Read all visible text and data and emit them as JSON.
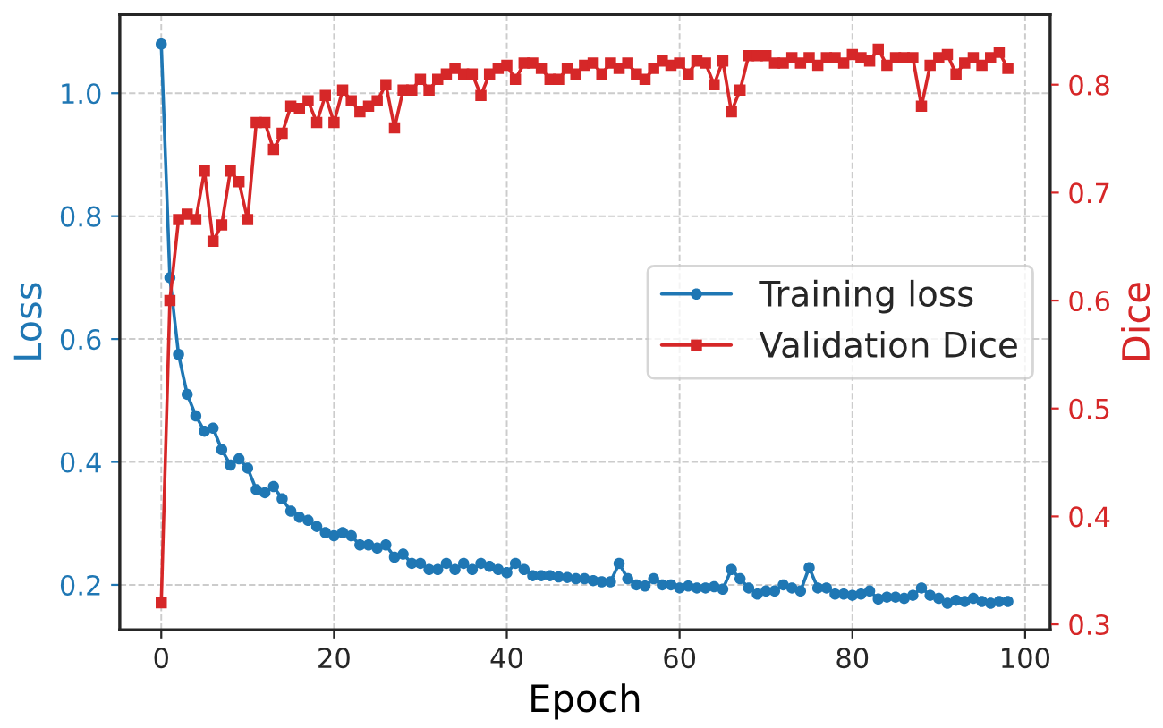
{
  "chart_data": {
    "type": "line",
    "xlabel": "Epoch",
    "ylabel": "Loss",
    "y2label": "Dice",
    "x": [
      0,
      1,
      2,
      3,
      4,
      5,
      6,
      7,
      8,
      9,
      10,
      11,
      12,
      13,
      14,
      15,
      16,
      17,
      18,
      19,
      20,
      21,
      22,
      23,
      24,
      25,
      26,
      27,
      28,
      29,
      30,
      31,
      32,
      33,
      34,
      35,
      36,
      37,
      38,
      39,
      40,
      41,
      42,
      43,
      44,
      45,
      46,
      47,
      48,
      49,
      50,
      51,
      52,
      53,
      54,
      55,
      56,
      57,
      58,
      59,
      60,
      61,
      62,
      63,
      64,
      65,
      66,
      67,
      68,
      69,
      70,
      71,
      72,
      73,
      74,
      75,
      76,
      77,
      78,
      79,
      80,
      81,
      82,
      83,
      84,
      85,
      86,
      87,
      88,
      89,
      90,
      91,
      92,
      93,
      94,
      95,
      96,
      97,
      98
    ],
    "series": [
      {
        "name": "Training loss",
        "color": "#1f77b4",
        "marker": "circle",
        "values": [
          1.08,
          0.7,
          0.575,
          0.51,
          0.475,
          0.45,
          0.455,
          0.42,
          0.395,
          0.405,
          0.39,
          0.355,
          0.35,
          0.36,
          0.34,
          0.32,
          0.31,
          0.305,
          0.295,
          0.285,
          0.28,
          0.285,
          0.28,
          0.265,
          0.265,
          0.26,
          0.265,
          0.245,
          0.25,
          0.235,
          0.235,
          0.225,
          0.225,
          0.235,
          0.225,
          0.235,
          0.225,
          0.235,
          0.23,
          0.225,
          0.22,
          0.235,
          0.225,
          0.215,
          0.215,
          0.215,
          0.213,
          0.212,
          0.21,
          0.21,
          0.207,
          0.205,
          0.205,
          0.235,
          0.21,
          0.2,
          0.198,
          0.21,
          0.2,
          0.2,
          0.195,
          0.198,
          0.195,
          0.195,
          0.197,
          0.193,
          0.225,
          0.21,
          0.195,
          0.185,
          0.19,
          0.19,
          0.2,
          0.195,
          0.19,
          0.228,
          0.195,
          0.195,
          0.185,
          0.185,
          0.183,
          0.185,
          0.19,
          0.177,
          0.18,
          0.18,
          0.178,
          0.183,
          0.195,
          0.183,
          0.178,
          0.17,
          0.175,
          0.173,
          0.178,
          0.173,
          0.17,
          0.173,
          0.173
        ]
      },
      {
        "name": "Validation Dice",
        "color": "#d62728",
        "marker": "square",
        "axis": "y2",
        "values": [
          0.32,
          0.6,
          0.675,
          0.68,
          0.675,
          0.72,
          0.655,
          0.67,
          0.72,
          0.71,
          0.675,
          0.765,
          0.765,
          0.74,
          0.755,
          0.78,
          0.778,
          0.785,
          0.765,
          0.79,
          0.765,
          0.795,
          0.785,
          0.775,
          0.78,
          0.785,
          0.8,
          0.76,
          0.795,
          0.795,
          0.805,
          0.795,
          0.805,
          0.81,
          0.815,
          0.81,
          0.81,
          0.79,
          0.81,
          0.815,
          0.818,
          0.805,
          0.82,
          0.82,
          0.815,
          0.805,
          0.805,
          0.815,
          0.81,
          0.818,
          0.82,
          0.81,
          0.82,
          0.815,
          0.82,
          0.81,
          0.805,
          0.815,
          0.822,
          0.818,
          0.82,
          0.81,
          0.822,
          0.82,
          0.8,
          0.822,
          0.775,
          0.795,
          0.827,
          0.827,
          0.827,
          0.82,
          0.82,
          0.825,
          0.82,
          0.825,
          0.818,
          0.825,
          0.825,
          0.82,
          0.828,
          0.825,
          0.822,
          0.833,
          0.818,
          0.825,
          0.825,
          0.825,
          0.78,
          0.818,
          0.825,
          0.828,
          0.81,
          0.82,
          0.825,
          0.818,
          0.825,
          0.83,
          0.815
        ]
      }
    ],
    "xlim": [
      -4.8,
      102.9
    ],
    "xticks": [
      0,
      20,
      40,
      60,
      80,
      100
    ],
    "ylim": [
      0.127,
      1.128
    ],
    "yticks": [
      0.2,
      0.4,
      0.6,
      0.8,
      {
        "value": 1,
        "label": "1.0"
      }
    ],
    "y2lim": [
      0.295,
      0.865
    ],
    "y2ticks": [
      0.3,
      0.4,
      0.5,
      0.6,
      0.7,
      0.8
    ],
    "grid": true,
    "legend": "right",
    "line_style": "solid"
  }
}
